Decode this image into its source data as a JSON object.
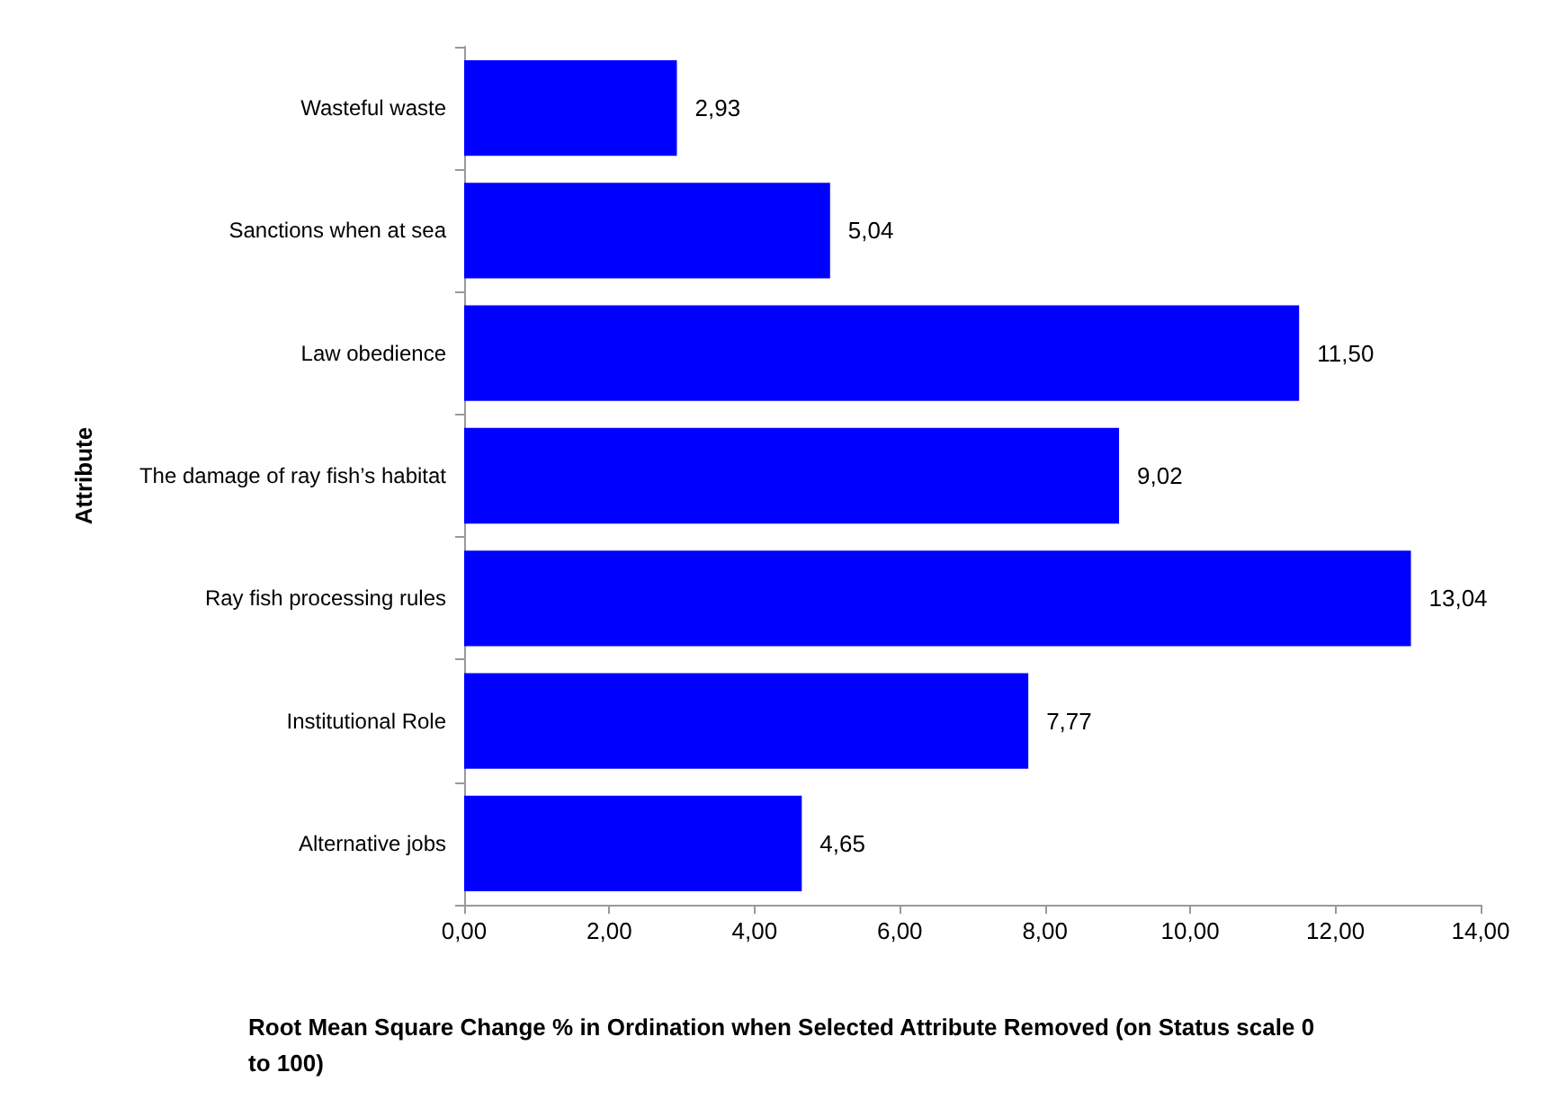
{
  "chart_data": {
    "type": "bar",
    "orientation": "horizontal",
    "xlabel": "Root Mean Square Change % in Ordination when Selected Attribute Removed (on Status scale 0 to 100)",
    "ylabel": "Attribute",
    "categories": [
      "Wasteful waste",
      "Sanctions when at sea",
      "Law obedience",
      "The damage of ray fish’s habitat",
      "Ray fish processing rules",
      "Institutional Role",
      "Alternative jobs"
    ],
    "values": [
      2.93,
      5.04,
      11.5,
      9.02,
      13.04,
      7.77,
      4.65
    ],
    "value_labels": [
      "2,93",
      "5,04",
      "11,50",
      "9,02",
      "13,04",
      "7,77",
      "4,65"
    ],
    "color": "#0000ff",
    "xlim": [
      0,
      14
    ],
    "xticks": [
      {
        "value": 0,
        "label": "0,00"
      },
      {
        "value": 2,
        "label": "2,00"
      },
      {
        "value": 4,
        "label": "4,00"
      },
      {
        "value": 6,
        "label": "6,00"
      },
      {
        "value": 8,
        "label": "8,00"
      },
      {
        "value": 10,
        "label": "10,00"
      },
      {
        "value": 12,
        "label": "12,00"
      },
      {
        "value": 14,
        "label": "14,00"
      }
    ],
    "grid": false
  }
}
